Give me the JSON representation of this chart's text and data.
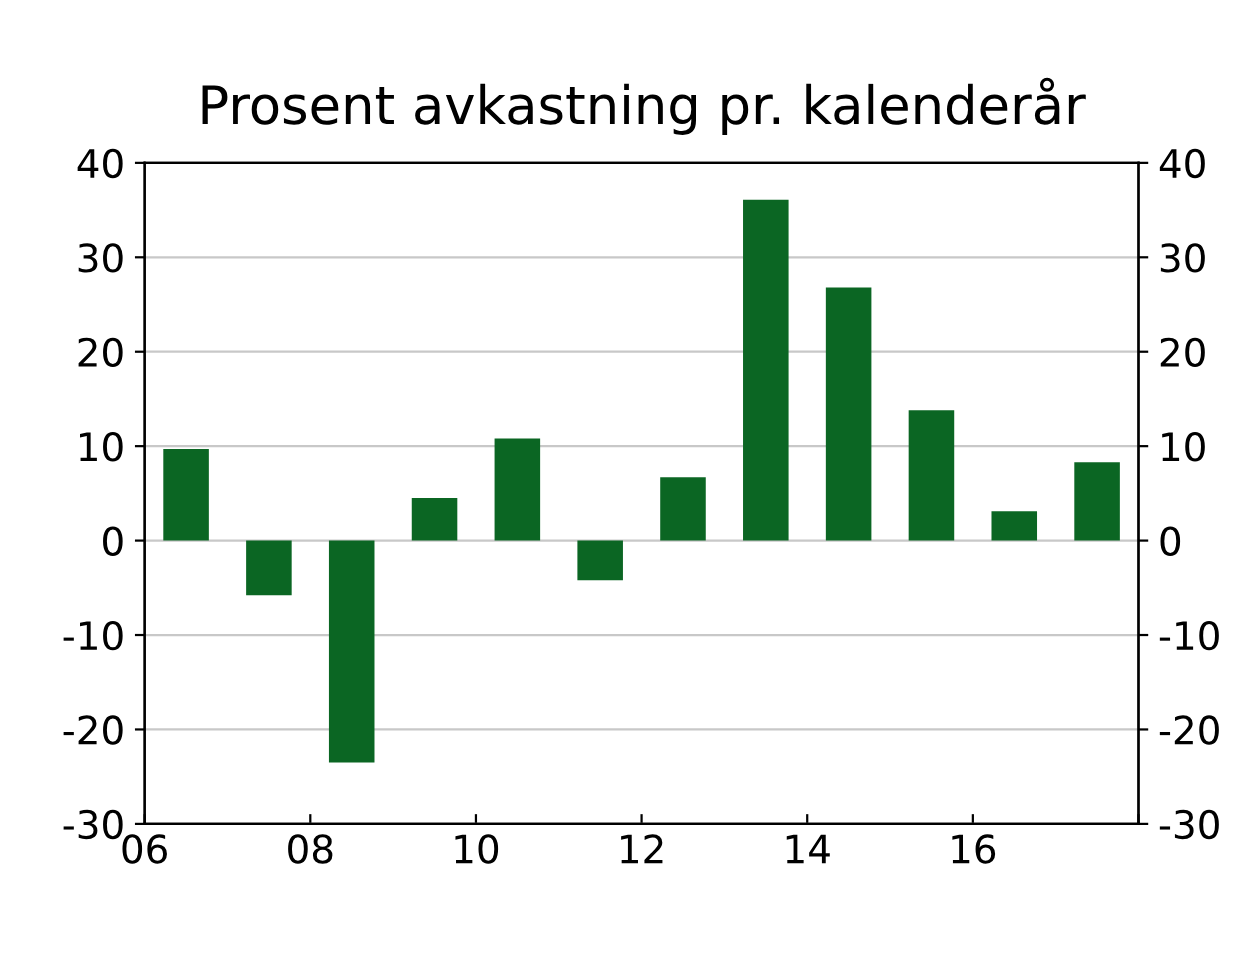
{
  "chart_data": {
    "type": "bar",
    "title": "Prosent avkastning pr. kalenderår",
    "x": [
      2006.5,
      2007.5,
      2008.5,
      2009.5,
      2010.5,
      2011.5,
      2012.5,
      2013.5,
      2014.5,
      2015.5,
      2016.5,
      2017.5
    ],
    "values": [
      9.7,
      -5.8,
      -23.5,
      4.5,
      10.8,
      -4.2,
      6.7,
      36.1,
      26.8,
      13.8,
      3.1,
      8.3
    ],
    "color": "#0b6623",
    "xlim": [
      2006,
      2018
    ],
    "xticks": [
      {
        "value": 2006,
        "label": "06"
      },
      {
        "value": 2008,
        "label": "08"
      },
      {
        "value": 2010,
        "label": "10"
      },
      {
        "value": 2012,
        "label": "12"
      },
      {
        "value": 2014,
        "label": "14"
      },
      {
        "value": 2016,
        "label": "16"
      },
      {
        "value": 2018,
        "label": null
      }
    ],
    "ylim": [
      -30,
      40
    ],
    "yticks": [
      -30,
      -20,
      -10,
      0,
      10,
      20,
      30,
      40
    ],
    "y2lim": [
      -30,
      40
    ],
    "y2ticks": [
      -30,
      -20,
      -10,
      0,
      10,
      20,
      30,
      40
    ],
    "grid": "y"
  }
}
